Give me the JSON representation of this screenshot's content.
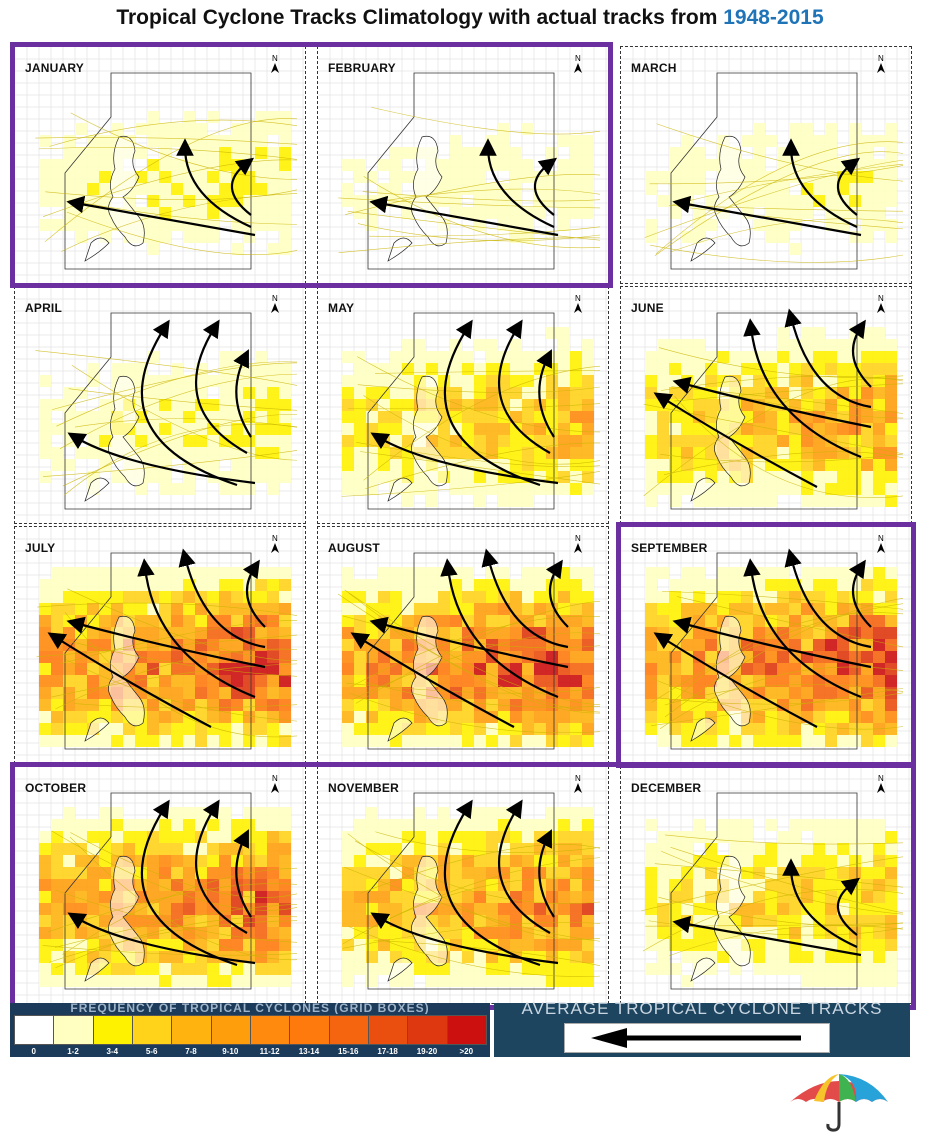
{
  "header": {
    "title_text": "Tropical Cyclone Tracks Climatology with actual tracks from",
    "years": "1948-2015"
  },
  "colors": {
    "title_years": "#1f73b7",
    "callout_border": "#6b2fa0",
    "legend_bg": "#1c3b5a"
  },
  "panels": [
    {
      "month": "JANUARY",
      "intensity": 0.6,
      "tracks": "recurve_low",
      "highlighted": true
    },
    {
      "month": "FEBRUARY",
      "intensity": 0.4,
      "tracks": "recurve_low",
      "highlighted": true
    },
    {
      "month": "MARCH",
      "intensity": 0.5,
      "tracks": "recurve_low",
      "highlighted": false
    },
    {
      "month": "APRIL",
      "intensity": 0.6,
      "tracks": "recurve_mid",
      "highlighted": false
    },
    {
      "month": "MAY",
      "intensity": 1.2,
      "tracks": "recurve_mid",
      "highlighted": false
    },
    {
      "month": "JUNE",
      "intensity": 1.5,
      "tracks": "recurve_high",
      "highlighted": false
    },
    {
      "month": "JULY",
      "intensity": 2.6,
      "tracks": "recurve_high",
      "highlighted": false
    },
    {
      "month": "AUGUST",
      "intensity": 2.7,
      "tracks": "recurve_high",
      "highlighted": false
    },
    {
      "month": "SEPTEMBER",
      "intensity": 2.6,
      "tracks": "recurve_high",
      "highlighted": true
    },
    {
      "month": "OCTOBER",
      "intensity": 2.2,
      "tracks": "recurve_mid",
      "highlighted": true
    },
    {
      "month": "NOVEMBER",
      "intensity": 1.9,
      "tracks": "recurve_mid",
      "highlighted": true
    },
    {
      "month": "DECEMBER",
      "intensity": 1.1,
      "tracks": "recurve_low",
      "highlighted": true
    }
  ],
  "legend": {
    "title": "FREQUENCY OF TROPICAL CYCLONES (GRID BOXES)",
    "bins": [
      {
        "label": "0",
        "color": "#ffffff"
      },
      {
        "label": "1-2",
        "color": "#ffffc2"
      },
      {
        "label": "3-4",
        "color": "#fff200"
      },
      {
        "label": "5-6",
        "color": "#ffd31a"
      },
      {
        "label": "7-8",
        "color": "#ffb30f"
      },
      {
        "label": "9-10",
        "color": "#ff9e0d"
      },
      {
        "label": "11-12",
        "color": "#ff8a0d"
      },
      {
        "label": "13-14",
        "color": "#ff7a0d"
      },
      {
        "label": "15-16",
        "color": "#f5650f"
      },
      {
        "label": "17-18",
        "color": "#ea4f10"
      },
      {
        "label": "19-20",
        "color": "#de3810"
      },
      {
        "label": ">20",
        "color": "#cc1010"
      }
    ]
  },
  "tracks_legend": {
    "title": "AVERAGE TROPICAL CYCLONE TRACKS"
  }
}
